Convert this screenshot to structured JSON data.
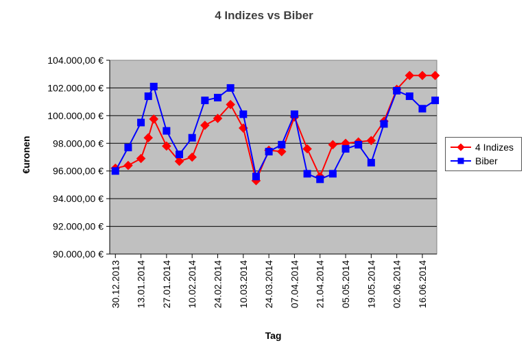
{
  "title": "4 Indizes vs Biber",
  "legend": {
    "items": [
      {
        "label": "4 Indizes",
        "color": "#ff0000",
        "marker": "diamond"
      },
      {
        "label": "Biber",
        "color": "#0000ff",
        "marker": "square"
      }
    ]
  },
  "chart_data": {
    "type": "line",
    "title": "4 Indizes vs Biber",
    "xlabel": "Tag",
    "ylabel": "€uronen",
    "plot_background": "#c0c0c0",
    "grid_color": "#000000",
    "plot_border_color": "#808080",
    "axis_color": "#000000",
    "ylim": [
      90000,
      104000
    ],
    "yticks": [
      {
        "value": 90000,
        "label": "90.000,00 €"
      },
      {
        "value": 92000,
        "label": "92.000,00 €"
      },
      {
        "value": 94000,
        "label": "94.000,00 €"
      },
      {
        "value": 96000,
        "label": "96.000,00 €"
      },
      {
        "value": 98000,
        "label": "98.000,00 €"
      },
      {
        "value": 100000,
        "label": "100.000,00 €"
      },
      {
        "value": 102000,
        "label": "102.000,00 €"
      },
      {
        "value": 104000,
        "label": "104.000,00 €"
      }
    ],
    "xticks": [
      {
        "day": 0,
        "label": "30.12.2013"
      },
      {
        "day": 14,
        "label": "13.01.2014"
      },
      {
        "day": 28,
        "label": "27.01.2014"
      },
      {
        "day": 42,
        "label": "10.02.2014"
      },
      {
        "day": 56,
        "label": "24.02.2014"
      },
      {
        "day": 70,
        "label": "10.03.2014"
      },
      {
        "day": 84,
        "label": "24.03.2014"
      },
      {
        "day": 98,
        "label": "07.04.2014"
      },
      {
        "day": 112,
        "label": "21.04.2014"
      },
      {
        "day": 126,
        "label": "05.05.2014"
      },
      {
        "day": 140,
        "label": "19.05.2014"
      },
      {
        "day": 154,
        "label": "02.06.2014"
      },
      {
        "day": 168,
        "label": "16.06.2014"
      }
    ],
    "x_domain_days": [
      -3.1,
      175.9
    ],
    "categories": [
      "30.12.2013",
      "06.01.2014",
      "13.01.2014",
      "17.01.2014",
      "20.01.2014",
      "27.01.2014",
      "03.02.2014",
      "10.02.2014",
      "17.02.2014",
      "24.02.2014",
      "03.03.2014",
      "10.03.2014",
      "17.03.2014",
      "24.03.2014",
      "31.03.2014",
      "07.04.2014",
      "14.04.2014",
      "21.04.2014",
      "28.04.2014",
      "05.05.2014",
      "12.05.2014",
      "19.05.2014",
      "26.05.2014",
      "02.06.2014",
      "09.06.2014",
      "16.06.2014",
      "23.06.2014"
    ],
    "days": [
      0,
      7,
      14,
      18,
      21,
      28,
      35,
      42,
      49,
      56,
      63,
      70,
      77,
      84,
      91,
      98,
      105,
      112,
      119,
      126,
      133,
      140,
      147,
      154,
      161,
      168,
      175
    ],
    "series": [
      {
        "name": "4 Indizes",
        "color": "#ff0000",
        "marker": "diamond",
        "values": [
          96200,
          96400,
          96900,
          98400,
          99750,
          97800,
          96700,
          97000,
          99300,
          99800,
          100800,
          99100,
          95300,
          97500,
          97400,
          99900,
          97600,
          95600,
          97900,
          98000,
          98100,
          98200,
          99600,
          101900,
          102900,
          102900,
          102900
        ]
      },
      {
        "name": "Biber",
        "color": "#0000ff",
        "marker": "square",
        "values": [
          96000,
          97700,
          99500,
          101400,
          102100,
          98900,
          97200,
          98400,
          101100,
          101300,
          102000,
          100100,
          95600,
          97400,
          97900,
          100100,
          95800,
          95400,
          95800,
          97600,
          97900,
          96600,
          99400,
          101800,
          101400,
          100500,
          101100
        ]
      }
    ],
    "legend_position": "right"
  }
}
